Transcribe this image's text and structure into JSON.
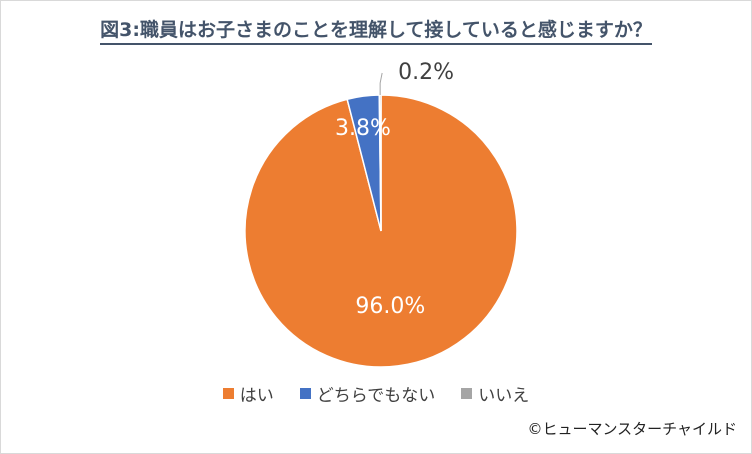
{
  "chart_data": {
    "type": "pie",
    "title": "図3:職員はお子さまのことを理解して接していると感じますか？",
    "categories": [
      "はい",
      "どちらでもない",
      "いいえ"
    ],
    "values": [
      96.0,
      3.8,
      0.2
    ],
    "labels": [
      "96.0%",
      "3.8%",
      "0.2%"
    ],
    "colors": [
      "#ed7d31",
      "#4472c4",
      "#a5a5a5"
    ],
    "legend_position": "bottom"
  },
  "credit": "©ヒューマンスターチャイルド"
}
